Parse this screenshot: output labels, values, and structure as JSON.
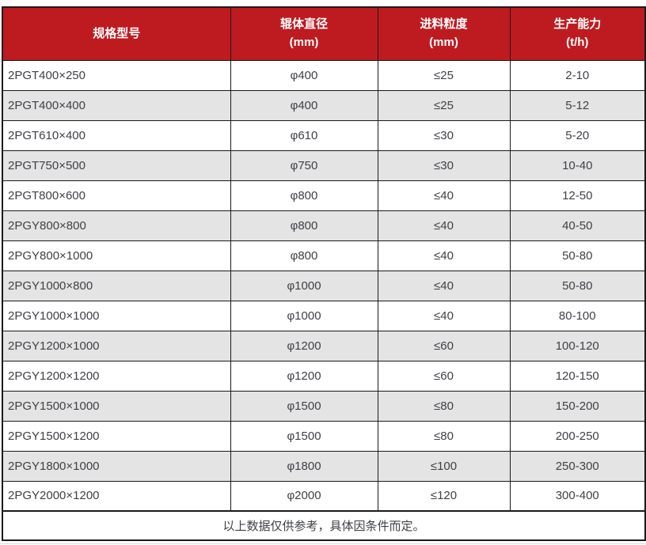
{
  "chart_data": {
    "type": "table",
    "columns": [
      {
        "label": "规格型号",
        "unit": ""
      },
      {
        "label": "辊体直径",
        "unit": "(mm)"
      },
      {
        "label": "进料粒度",
        "unit": "(mm)"
      },
      {
        "label": "生产能力",
        "unit": "(t/h)"
      }
    ],
    "rows": [
      [
        "2PGT400×250",
        "φ400",
        "≤25",
        "2-10"
      ],
      [
        "2PGT400×400",
        "φ400",
        "≤25",
        "5-12"
      ],
      [
        "2PGT610×400",
        "φ610",
        "≤30",
        "5-20"
      ],
      [
        "2PGT750×500",
        "φ750",
        "≤30",
        "10-40"
      ],
      [
        "2PGT800×600",
        "φ800",
        "≤40",
        "12-50"
      ],
      [
        "2PGY800×800",
        "φ800",
        "≤40",
        "40-50"
      ],
      [
        "2PGY800×1000",
        "φ800",
        "≤40",
        "50-80"
      ],
      [
        "2PGY1000×800",
        "φ1000",
        "≤40",
        "50-80"
      ],
      [
        "2PGY1000×1000",
        "φ1000",
        "≤40",
        "80-100"
      ],
      [
        "2PGY1200×1000",
        "φ1200",
        "≤60",
        "100-120"
      ],
      [
        "2PGY1200×1200",
        "φ1200",
        "≤60",
        "120-150"
      ],
      [
        "2PGY1500×1000",
        "φ1500",
        "≤80",
        "150-200"
      ],
      [
        "2PGY1500×1200",
        "φ1500",
        "≤80",
        "200-250"
      ],
      [
        "2PGY1800×1000",
        "φ1800",
        "≤100",
        "250-300"
      ],
      [
        "2PGY2000×1200",
        "φ2000",
        "≤120",
        "300-400"
      ]
    ],
    "note": "以上数据仅供参考，具体因条件而定。"
  },
  "colors": {
    "header_bg": "#BE1B21",
    "header_text": "#FFFFFF",
    "row_bg": "#FFFFFF",
    "row_alt_bg": "#E4E4E4",
    "border": "#1A1A1A",
    "body_text": "#3E4146"
  }
}
